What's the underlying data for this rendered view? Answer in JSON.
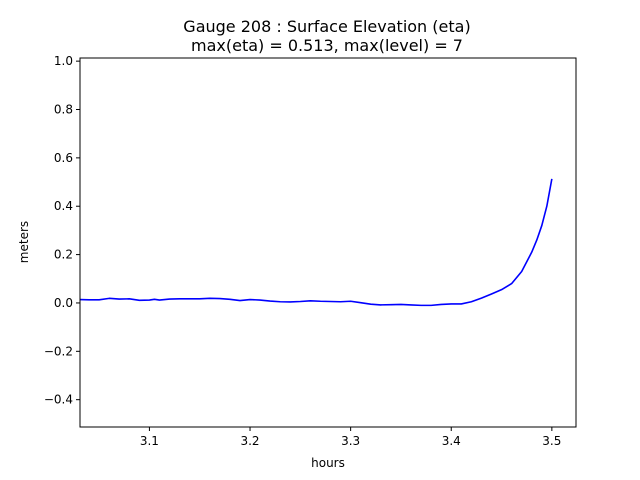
{
  "chart_data": {
    "type": "line",
    "title_line1": "Gauge 208 : Surface Elevation (eta)",
    "title_line2": "max(eta) =   0.513,    max(level) = 7",
    "xlabel": "hours",
    "ylabel": "meters",
    "xlim": [
      3.031,
      3.524
    ],
    "ylim": [
      -0.513,
      1.013
    ],
    "xticks": [
      3.1,
      3.2,
      3.3,
      3.4,
      3.5
    ],
    "xtick_labels": [
      "3.1",
      "3.2",
      "3.3",
      "3.4",
      "3.5"
    ],
    "yticks": [
      -0.4,
      -0.2,
      0.0,
      0.2,
      0.4,
      0.6,
      0.8,
      1.0
    ],
    "ytick_labels": [
      "−0.4",
      "−0.2",
      "0.0",
      "0.2",
      "0.4",
      "0.6",
      "0.8",
      "1.0"
    ],
    "grid": false,
    "series": [
      {
        "name": "eta",
        "color": "#0000ff",
        "x": [
          3.031,
          3.04,
          3.05,
          3.06,
          3.07,
          3.08,
          3.09,
          3.1,
          3.105,
          3.11,
          3.12,
          3.13,
          3.14,
          3.15,
          3.16,
          3.17,
          3.18,
          3.19,
          3.2,
          3.21,
          3.22,
          3.23,
          3.24,
          3.25,
          3.26,
          3.27,
          3.28,
          3.29,
          3.3,
          3.31,
          3.32,
          3.33,
          3.34,
          3.35,
          3.36,
          3.37,
          3.38,
          3.39,
          3.4,
          3.41,
          3.42,
          3.43,
          3.44,
          3.45,
          3.46,
          3.47,
          3.48,
          3.485,
          3.49,
          3.495,
          3.5
        ],
        "y": [
          0.014,
          0.013,
          0.013,
          0.019,
          0.016,
          0.017,
          0.011,
          0.012,
          0.015,
          0.012,
          0.016,
          0.017,
          0.017,
          0.017,
          0.019,
          0.018,
          0.015,
          0.01,
          0.014,
          0.012,
          0.008,
          0.005,
          0.004,
          0.006,
          0.009,
          0.007,
          0.006,
          0.005,
          0.007,
          0.001,
          -0.005,
          -0.008,
          -0.007,
          -0.006,
          -0.008,
          -0.01,
          -0.01,
          -0.006,
          -0.004,
          -0.004,
          0.005,
          0.02,
          0.037,
          0.055,
          0.08,
          0.13,
          0.21,
          0.26,
          0.32,
          0.4,
          0.513
        ]
      }
    ]
  }
}
